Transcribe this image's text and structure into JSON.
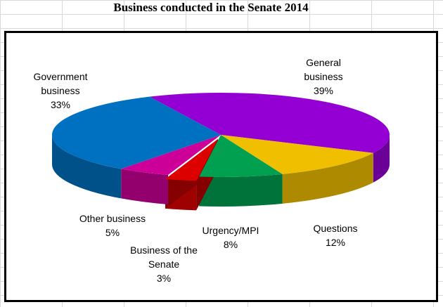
{
  "chart_title": "Business conducted in the Senate 2014",
  "chart_data": {
    "type": "pie",
    "title": "Business conducted in the Senate 2014",
    "slices": [
      {
        "name": "General business",
        "label_lines": [
          "General",
          "business"
        ],
        "value": 39,
        "pct": "39%",
        "color": "#9400d3"
      },
      {
        "name": "Questions",
        "label_lines": [
          "Questions"
        ],
        "value": 12,
        "pct": "12%",
        "color": "#f0c000"
      },
      {
        "name": "Urgency/MPI",
        "label_lines": [
          "Urgency/MPI"
        ],
        "value": 8,
        "pct": "8%",
        "color": "#00a050"
      },
      {
        "name": "Business of the Senate",
        "label_lines": [
          "Business of the",
          "Senate"
        ],
        "value": 3,
        "pct": "3%",
        "color": "#dd0000",
        "exploded": true
      },
      {
        "name": "Other business",
        "label_lines": [
          "Other business"
        ],
        "value": 5,
        "pct": "5%",
        "color": "#cc0099"
      },
      {
        "name": "Government business",
        "label_lines": [
          "Government",
          "business"
        ],
        "value": 33,
        "pct": "33%",
        "color": "#0070c0"
      }
    ]
  }
}
